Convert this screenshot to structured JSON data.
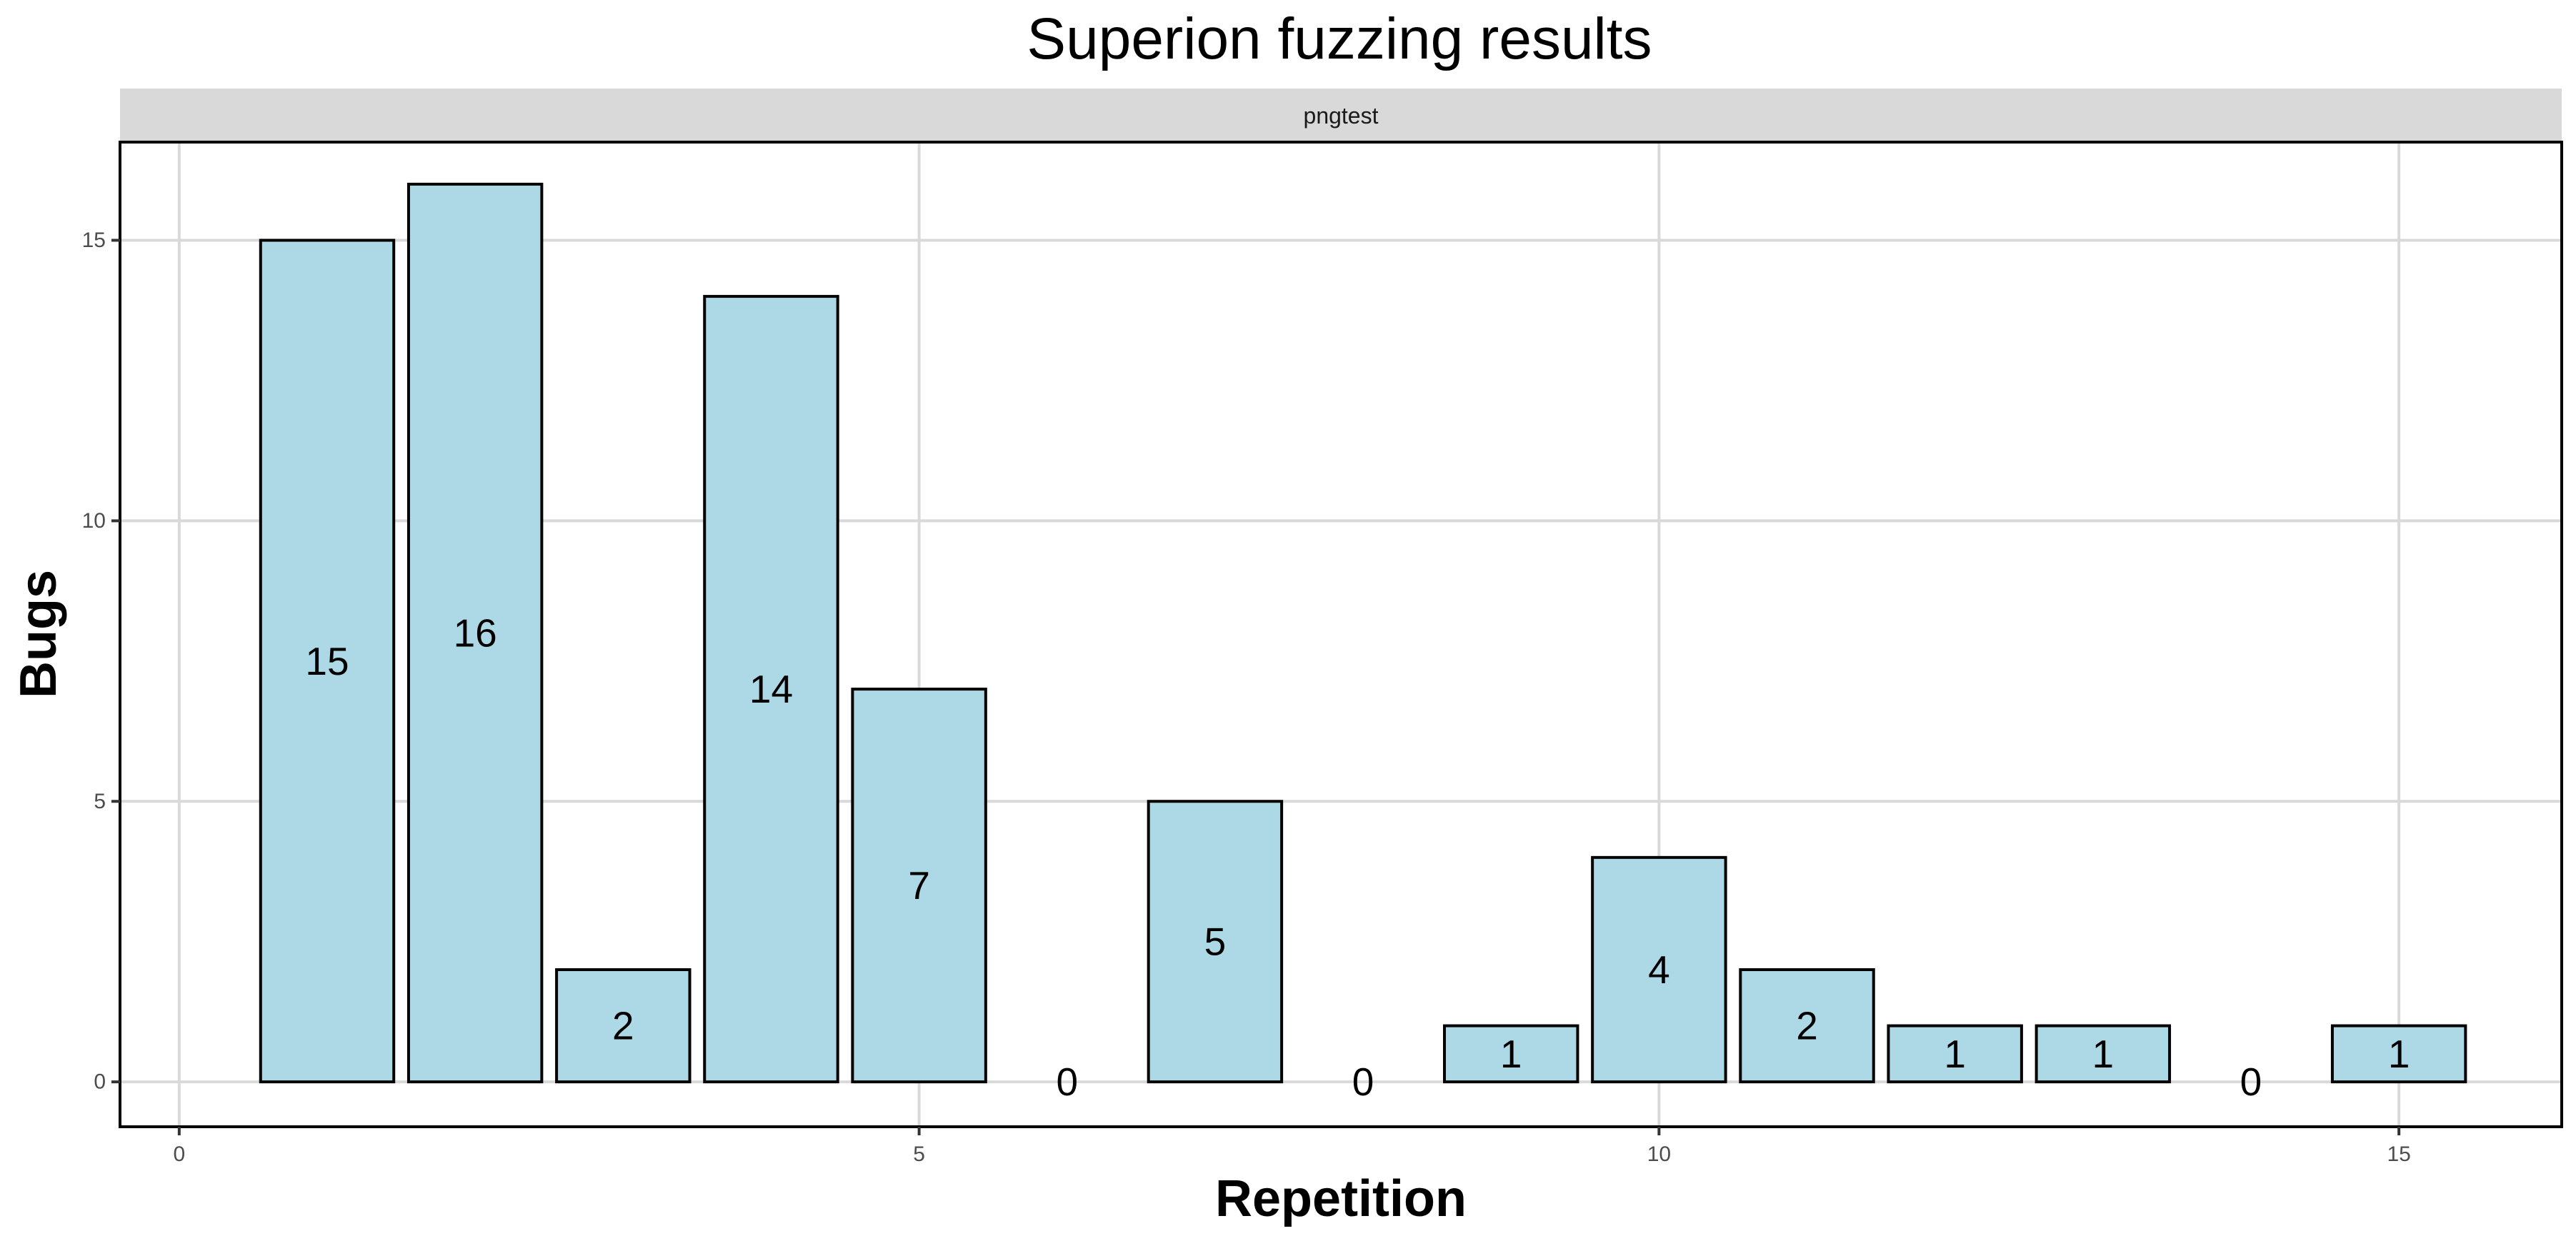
{
  "chart_data": {
    "type": "bar",
    "title": "Superion fuzzing results",
    "facet": "pngtest",
    "xlabel": "Repetition",
    "ylabel": "Bugs",
    "x": [
      1,
      2,
      3,
      4,
      5,
      6,
      7,
      8,
      9,
      10,
      11,
      12,
      13,
      14,
      15
    ],
    "values": [
      15,
      16,
      2,
      14,
      7,
      0,
      5,
      0,
      1,
      4,
      2,
      1,
      1,
      0,
      1
    ],
    "data_labels": [
      "15",
      "16",
      "2",
      "14",
      "7",
      "0",
      "5",
      "0",
      "1",
      "4",
      "2",
      "1",
      "1",
      "0",
      "1"
    ],
    "xlim": [
      -0.4,
      16.1
    ],
    "ylim": [
      -0.8,
      16.75
    ],
    "x_ticks": [
      0,
      5,
      10,
      15
    ],
    "x_tick_labels": [
      "0",
      "5",
      "10",
      "15"
    ],
    "y_ticks": [
      0,
      5,
      10,
      15
    ],
    "y_tick_labels": [
      "0",
      "5",
      "10",
      "15"
    ],
    "grid": true,
    "bar_color": "#add8e6",
    "bar_outline": "#000000",
    "strip_color": "#d9d9d9"
  }
}
